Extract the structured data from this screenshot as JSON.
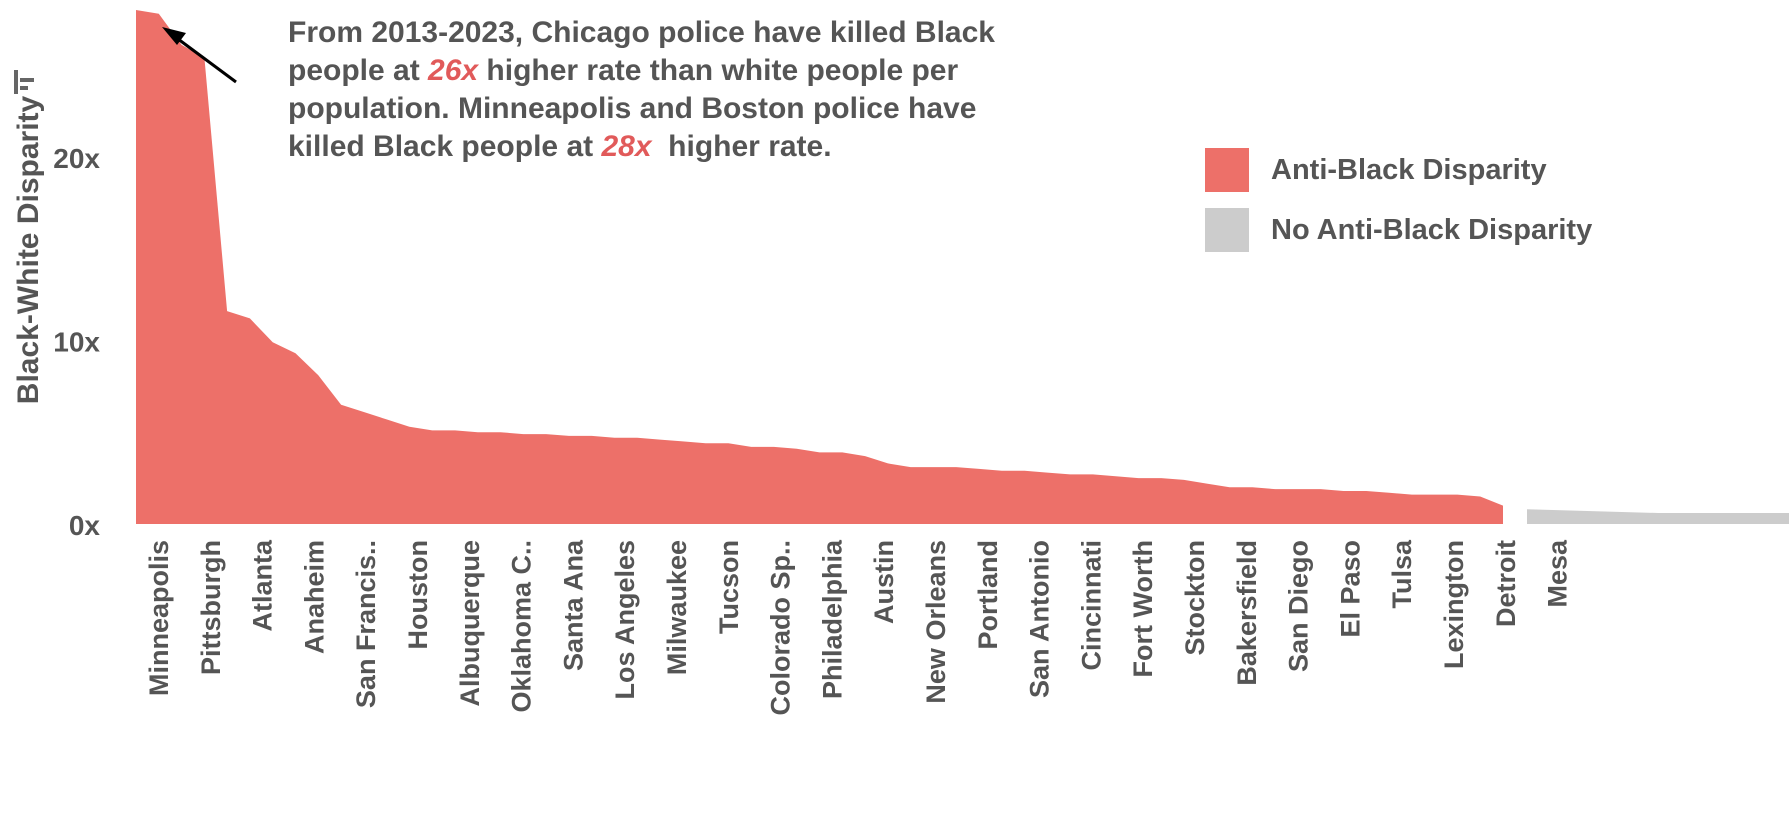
{
  "annotation": {
    "line1": "From 2013-2023, Chicago police have killed Black",
    "line2_pre": "people at ",
    "line2_hl": "26x",
    "line2_post": " higher rate than white people per",
    "line3": "population. Minneapolis and Boston police have",
    "line4_pre": "killed Black people at ",
    "line4_hl": "28x",
    "line4_post": "  higher rate."
  },
  "legend": [
    {
      "label": "Anti-Black Disparity",
      "color": "#ed7069"
    },
    {
      "label": "No Anti-Black Disparity",
      "color": "#cccccc"
    }
  ],
  "icons": {
    "filter": "filter-icon"
  },
  "chart_data": {
    "type": "area",
    "title": "",
    "xlabel": "",
    "ylabel": "Black-White Disparity",
    "ylim": [
      0,
      28
    ],
    "yticks": [
      0,
      10,
      20
    ],
    "ytick_labels": [
      "0x",
      "10x",
      "20x"
    ],
    "grid": false,
    "legend_position": "right",
    "x_labels": [
      "Minneapolis",
      "Pittsburgh",
      "Atlanta",
      "Anaheim",
      "San Francis..",
      "Houston",
      "Albuquerque",
      "Oklahoma C..",
      "Santa Ana",
      "Los Angeles",
      "Milwaukee",
      "Tucson",
      "Colorado Sp..",
      "Philadelphia",
      "Austin",
      "New Orleans",
      "Portland",
      "San Antonio",
      "Cincinnati",
      "Fort Worth",
      "Stockton",
      "Bakersfield",
      "San Diego",
      "El Paso",
      "Tulsa",
      "Lexington",
      "Detroit",
      "Mesa"
    ],
    "series": [
      {
        "name": "Anti-Black Disparity",
        "color": "#ed7069",
        "values": [
          28.0,
          27.8,
          26.1,
          25.4,
          11.6,
          11.2,
          9.9,
          9.3,
          8.1,
          6.5,
          6.1,
          5.7,
          5.3,
          5.1,
          5.1,
          5.0,
          5.0,
          4.9,
          4.9,
          4.8,
          4.8,
          4.7,
          4.7,
          4.6,
          4.5,
          4.4,
          4.4,
          4.2,
          4.2,
          4.1,
          3.9,
          3.9,
          3.7,
          3.3,
          3.1,
          3.1,
          3.1,
          3.0,
          2.9,
          2.9,
          2.8,
          2.7,
          2.7,
          2.6,
          2.5,
          2.5,
          2.4,
          2.2,
          2.0,
          2.0,
          1.9,
          1.9,
          1.9,
          1.8,
          1.8,
          1.7,
          1.6,
          1.6,
          1.6,
          1.5,
          1.0
        ]
      },
      {
        "name": "No Anti-Black Disparity",
        "color": "#cccccc",
        "values": [
          0.8,
          0.6,
          0.6
        ]
      }
    ]
  }
}
